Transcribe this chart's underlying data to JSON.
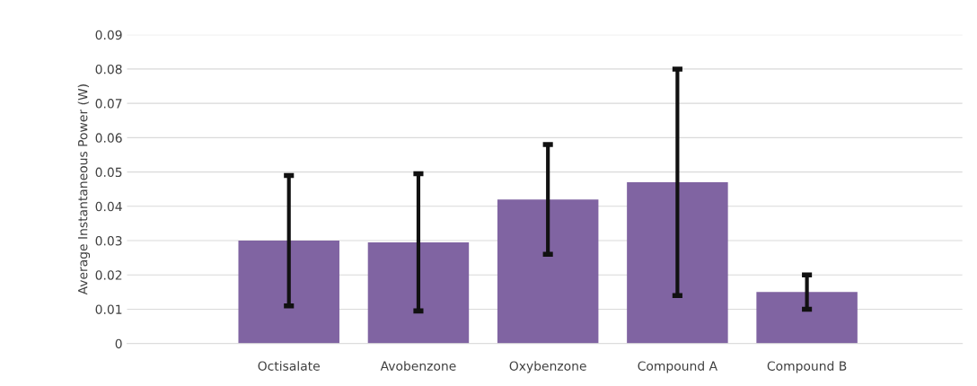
{
  "chart_data": {
    "type": "bar",
    "ylabel": "Average Instantaneous Power (W)",
    "categories": [
      "Octisalate",
      "Avobenzone",
      "Oxybenzone",
      "Compound A",
      "Compound B"
    ],
    "values": [
      0.03,
      0.0295,
      0.042,
      0.047,
      0.015
    ],
    "errors": [
      0.019,
      0.02,
      0.016,
      0.033,
      0.005
    ],
    "color": "#8064a2",
    "ylim": [
      0,
      0.09
    ],
    "yticks": [
      {
        "value": 0,
        "label": "0"
      },
      {
        "value": 0.01,
        "label": "0.01"
      },
      {
        "value": 0.02,
        "label": "0.02"
      },
      {
        "value": 0.03,
        "label": "0.03"
      },
      {
        "value": 0.04,
        "label": "0.04"
      },
      {
        "value": 0.05,
        "label": "0.05"
      },
      {
        "value": 0.06,
        "label": "0.06"
      },
      {
        "value": 0.07,
        "label": "0.07"
      },
      {
        "value": 0.08,
        "label": "0.08"
      },
      {
        "value": 0.09,
        "label": "0.09"
      }
    ],
    "grid": "y",
    "legend": false
  }
}
